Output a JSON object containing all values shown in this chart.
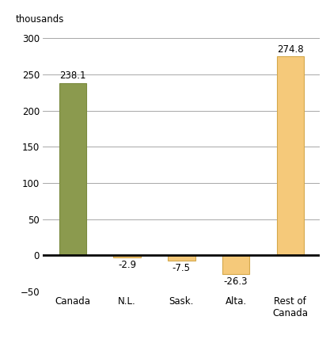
{
  "categories": [
    "Canada",
    "N.L.",
    "Sask.",
    "Alta.",
    "Rest of\nCanada"
  ],
  "values": [
    238.1,
    -2.9,
    -7.5,
    -26.3,
    274.8
  ],
  "bar_colors": [
    "#8b9a4e",
    "#f5c97a",
    "#f5c97a",
    "#f5c97a",
    "#f5c97a"
  ],
  "bar_edgecolors": [
    "#7a8a3e",
    "#d4a84b",
    "#d4a84b",
    "#d4a84b",
    "#d4a84b"
  ],
  "ylabel": "thousands",
  "ylim": [
    -50,
    315
  ],
  "yticks": [
    -50,
    0,
    50,
    100,
    150,
    200,
    250,
    300
  ],
  "data_labels": [
    "238.1",
    "-2.9",
    "-7.5",
    "-26.3",
    "274.8"
  ],
  "background_color": "#ffffff",
  "grid_color": "#999999",
  "label_fontsize": 8.5,
  "tick_fontsize": 8.5,
  "ylabel_fontsize": 8.5,
  "bar_width": 0.5
}
